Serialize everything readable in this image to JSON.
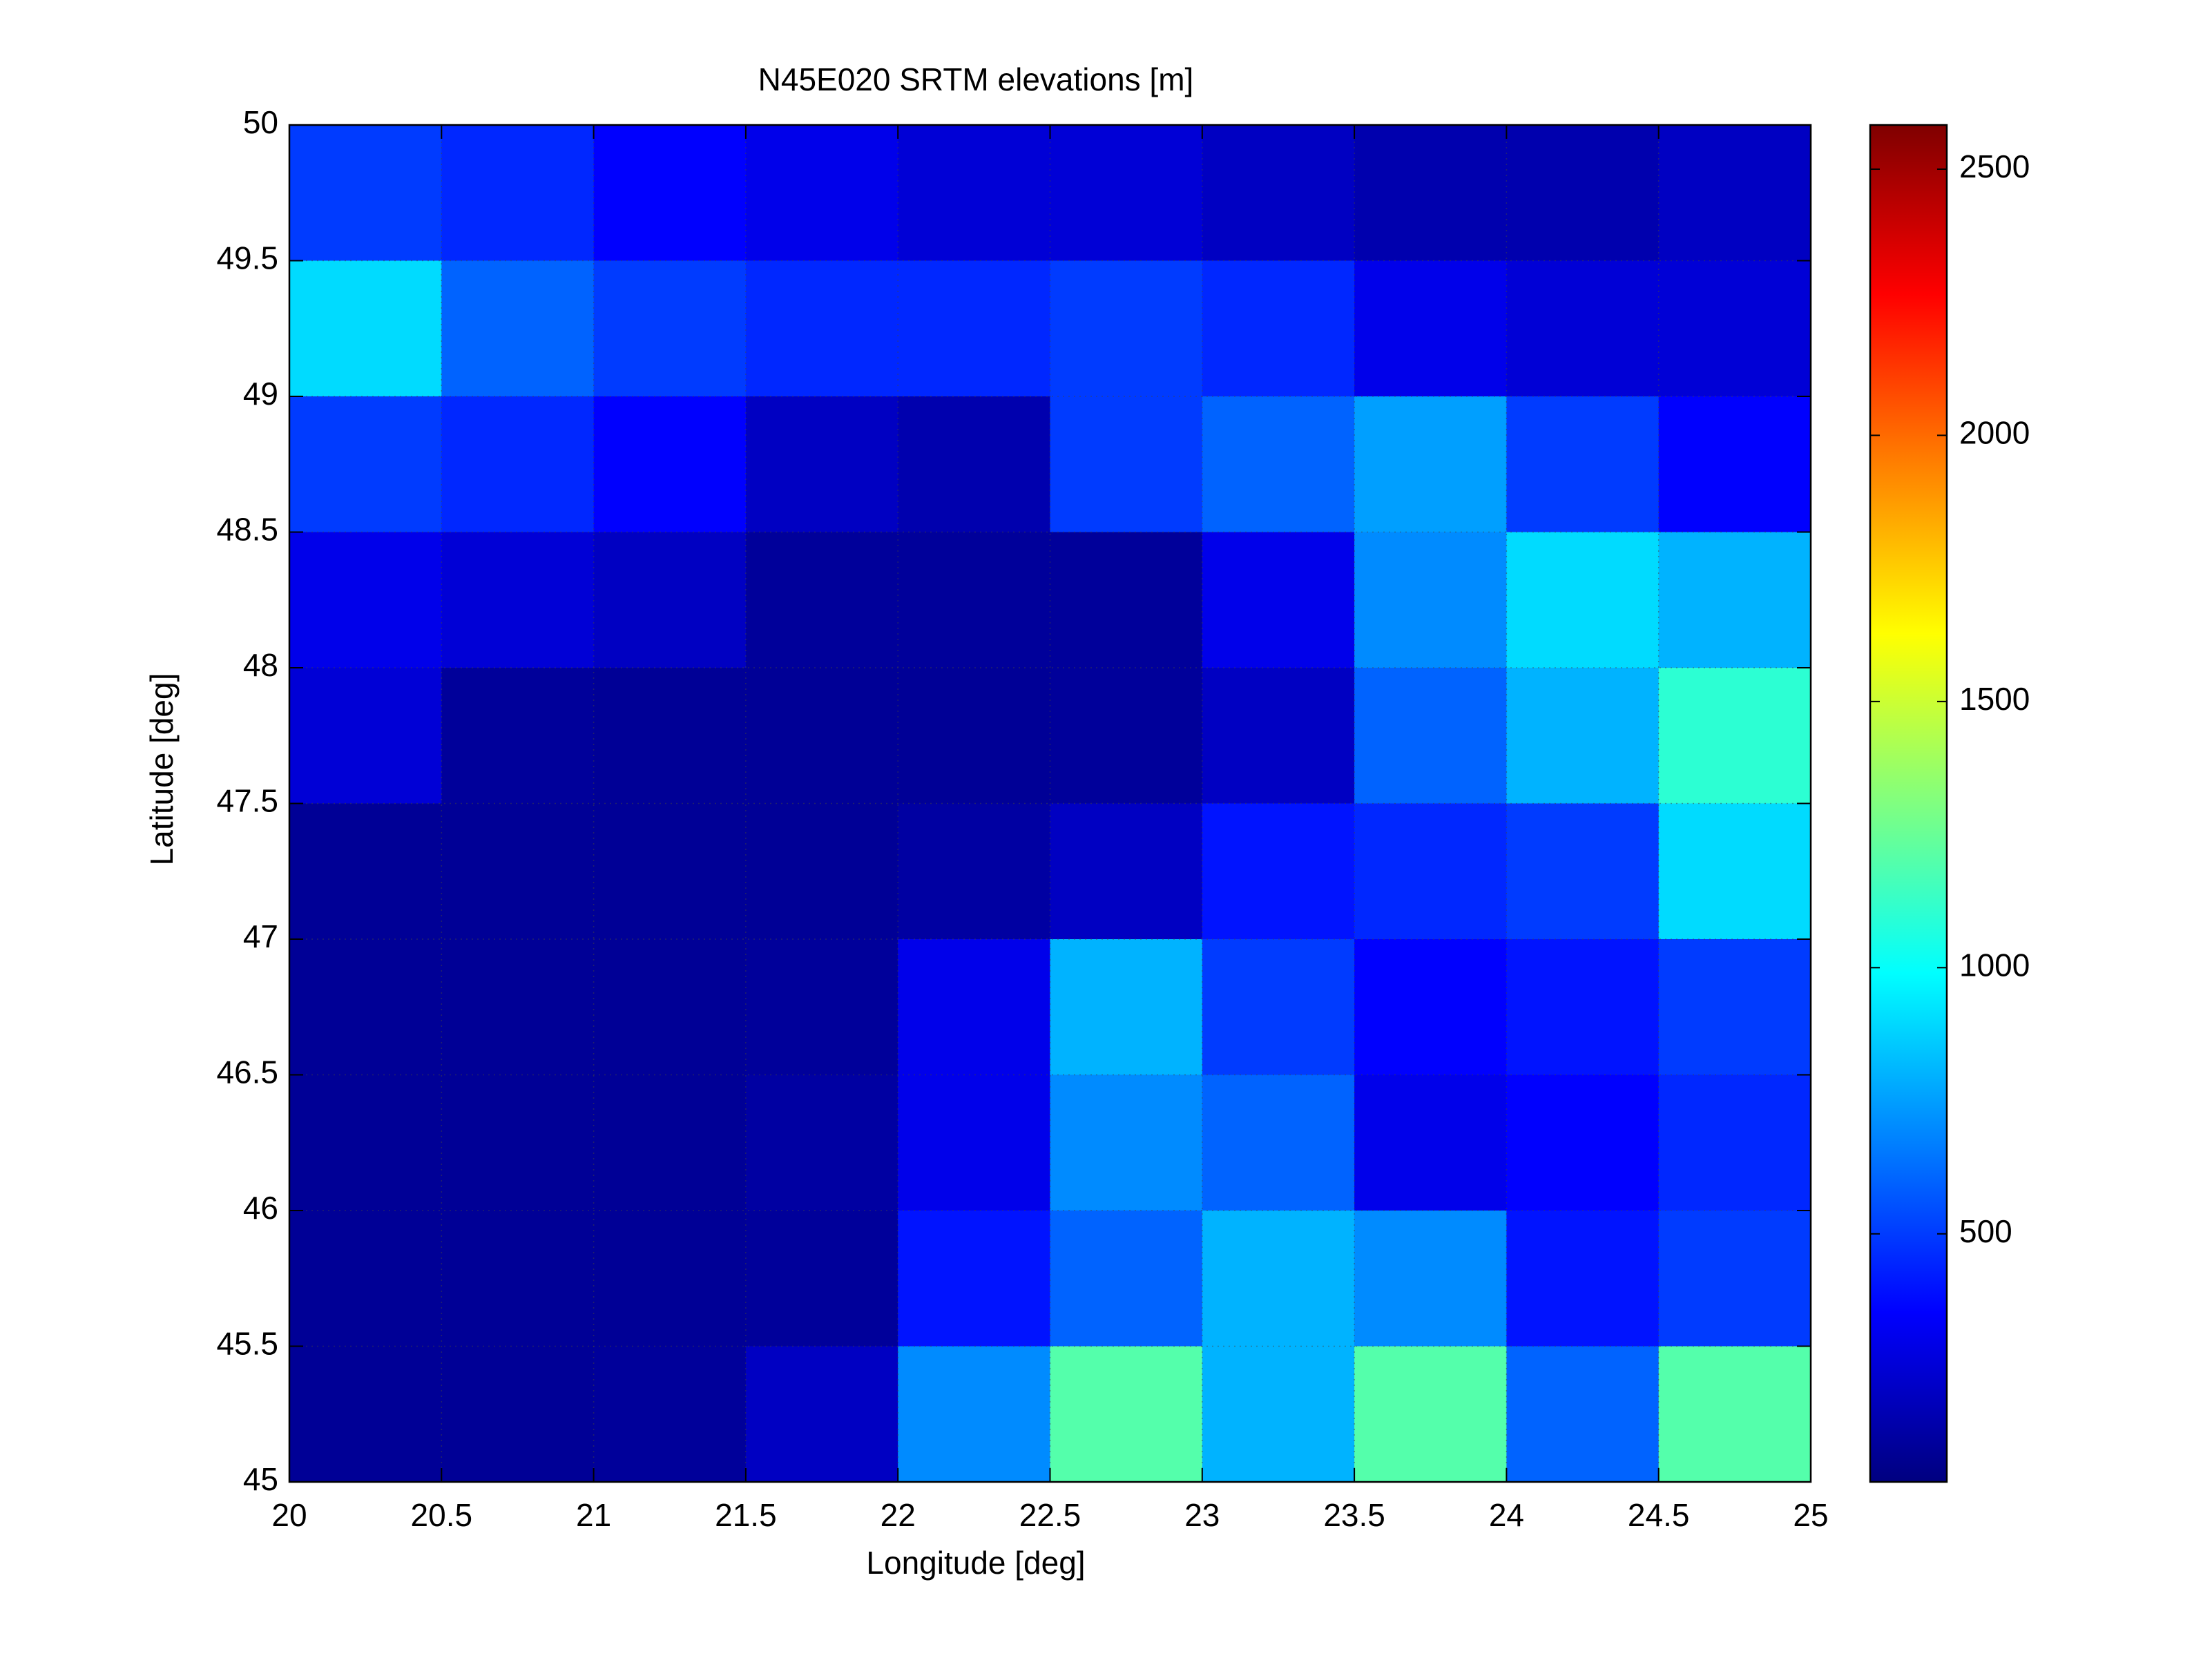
{
  "chart_data": {
    "type": "heatmap",
    "title": "N45E020 SRTM elevations [m]",
    "xlabel": "Longitude [deg]",
    "ylabel": "Latitude [deg]",
    "xlim": [
      20,
      25
    ],
    "ylim": [
      45,
      50
    ],
    "xticks": [
      20,
      20.5,
      21,
      21.5,
      22,
      22.5,
      23,
      23.5,
      24,
      24.5,
      25
    ],
    "yticks": [
      45,
      45.5,
      46,
      46.5,
      47,
      47.5,
      48,
      48.5,
      49,
      49.5,
      50
    ],
    "grid": true,
    "colormap": "jet",
    "clim": [
      34,
      2583
    ],
    "cticks": [
      500,
      1000,
      1500,
      2000,
      2500
    ],
    "x": [
      20.25,
      20.75,
      21.25,
      21.75,
      22.25,
      22.75,
      23.25,
      23.75,
      24.25,
      24.75
    ],
    "y": [
      49.75,
      49.25,
      48.75,
      48.25,
      47.75,
      47.25,
      46.75,
      46.25,
      45.75,
      45.25
    ],
    "z": [
      [
        500,
        450,
        350,
        300,
        250,
        250,
        200,
        150,
        150,
        200
      ],
      [
        900,
        600,
        500,
        450,
        450,
        500,
        450,
        300,
        250,
        250
      ],
      [
        500,
        450,
        350,
        200,
        150,
        500,
        600,
        750,
        500,
        350
      ],
      [
        300,
        250,
        200,
        100,
        100,
        100,
        300,
        700,
        900,
        800
      ],
      [
        250,
        100,
        90,
        90,
        90,
        100,
        200,
        600,
        800,
        1100
      ],
      [
        90,
        90,
        90,
        90,
        120,
        200,
        400,
        450,
        500,
        900
      ],
      [
        90,
        90,
        90,
        100,
        300,
        800,
        500,
        350,
        400,
        500
      ],
      [
        90,
        90,
        90,
        120,
        300,
        700,
        600,
        300,
        350,
        450
      ],
      [
        90,
        90,
        90,
        100,
        400,
        600,
        800,
        700,
        400,
        500
      ],
      [
        90,
        90,
        100,
        200,
        700,
        1200,
        800,
        1200,
        600,
        1200
      ]
    ]
  }
}
